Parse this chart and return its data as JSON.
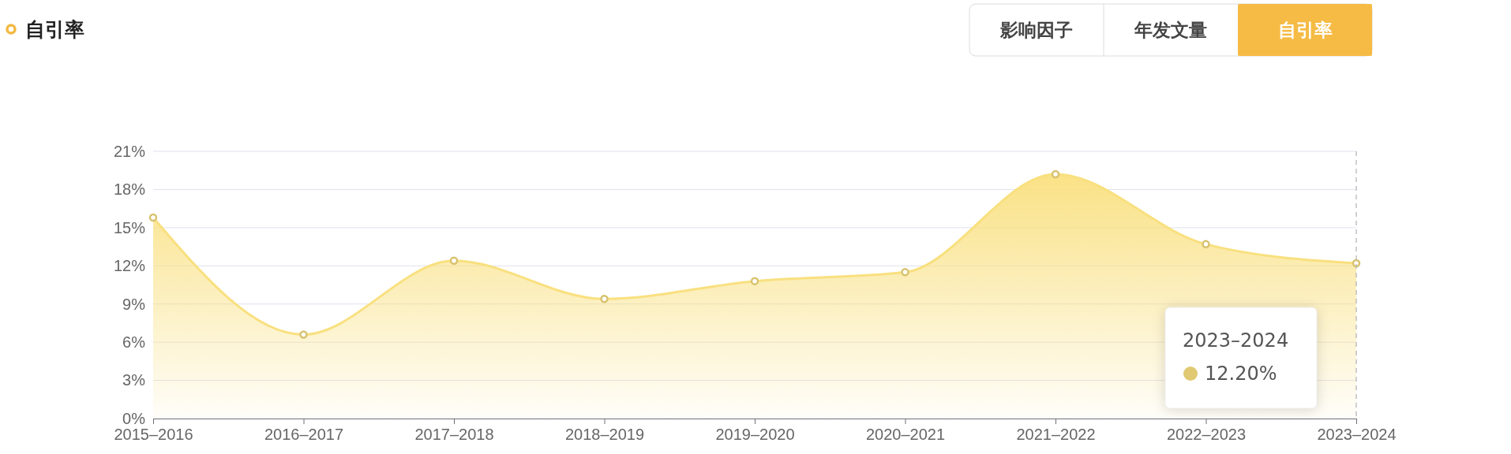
{
  "chart_data": {
    "type": "area",
    "title": "自引率",
    "categories": [
      "2015–2016",
      "2016–2017",
      "2017–2018",
      "2018–2019",
      "2019–2020",
      "2020–2021",
      "2021–2022",
      "2022–2023",
      "2023–2024"
    ],
    "series": [
      {
        "color": "#f9e07f",
        "values": [
          15.8,
          6.6,
          12.4,
          9.4,
          10.8,
          11.5,
          19.2,
          13.7,
          12.2
        ]
      }
    ],
    "ylim": [
      0,
      21
    ],
    "yticks": [
      {
        "value": 0,
        "label": "0%"
      },
      {
        "value": 3,
        "label": "3%"
      },
      {
        "value": 6,
        "label": "6%"
      },
      {
        "value": 9,
        "label": "9%"
      },
      {
        "value": 12,
        "label": "12%"
      },
      {
        "value": 15,
        "label": "15%"
      },
      {
        "value": 18,
        "label": "18%"
      },
      {
        "value": 21,
        "label": "21%"
      }
    ],
    "grid": "y",
    "marker": "circle",
    "ref_lines": [
      {
        "axis": "x",
        "value": "2023–2024",
        "color": "#b0b0b8",
        "line_style": "dashed"
      }
    ],
    "annotations": [
      "2023–2024",
      "12.20%",
      "影响因子",
      "年发文量",
      "自引率"
    ]
  }
}
